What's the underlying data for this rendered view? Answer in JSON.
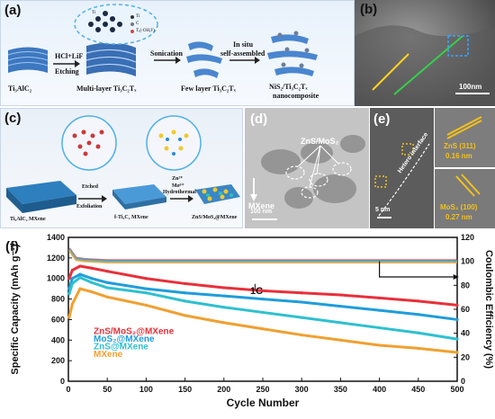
{
  "panel_a": {
    "label": "(a)",
    "steps": {
      "reagent1": "HCl+LiF",
      "step1": "Etching",
      "step2": "Sonication",
      "step3_line1": "In situ",
      "step3_line2": "self-assembled"
    },
    "materials": {
      "m1": "Ti₃AlC₂",
      "m2": "Multi-layer Ti₃C₂Tₓ",
      "m3": "Few layer Ti₃C₂Tₓ",
      "m4_line1": "NiS₂/Ti₃C₂Tₓ",
      "m4_line2": "nanocomposite"
    },
    "legend": [
      "Ti",
      "C",
      "Tₓ(-OH,F)"
    ]
  },
  "panel_b": {
    "label": "(b)",
    "scale": "100nm"
  },
  "panel_c": {
    "label": "(c)",
    "steps": {
      "s1_line1": "Etched",
      "s1_line2": "Exfoliation",
      "s2_line1": "Zn²⁺",
      "s2_line2": "Mo⁶⁺",
      "s2_line3": "Hydrothermal"
    },
    "materials": {
      "m1": "Ti₃AlC₂ MXene",
      "m2": "f-Ti₃C₂ MXene",
      "m3": "ZnS/MoS₂@MXene"
    }
  },
  "panel_d": {
    "label": "(d)",
    "annot1": "ZnS/MoS₂",
    "annot2": "MXene",
    "scale": "100 nm"
  },
  "panel_e": {
    "label": "(e)",
    "interface": "Hetero interface",
    "scale": "5 nm",
    "inset1_line1": "ZnS (311)",
    "inset1_line2": "0.16 nm",
    "inset2_line1": "MoS₂ (100)",
    "inset2_line2": "0.27 nm"
  },
  "panel_f": {
    "label": "(f)",
    "rate": "1C",
    "colors": {
      "ZnS_MoS2": "#e8303a",
      "MoS2": "#1f9ddb",
      "ZnS": "#2ec0cf",
      "MXene": "#f0a030"
    },
    "chart_data": {
      "type": "line",
      "xlabel": "Cycle Number",
      "ylabel": "Specific Capacity (mAh g⁻¹)",
      "y2label": "Coulombic Efficiency (%)",
      "xlim": [
        0,
        500
      ],
      "ylim": [
        0,
        1400
      ],
      "y2lim": [
        0,
        120
      ],
      "xticks": [
        0,
        50,
        100,
        150,
        200,
        250,
        300,
        350,
        400,
        450,
        500
      ],
      "yticks": [
        0,
        200,
        400,
        600,
        800,
        1000,
        1200,
        1400
      ],
      "y2ticks": [
        0,
        20,
        40,
        60,
        80,
        100,
        120
      ],
      "series": [
        {
          "name": "ZnS/MoS₂@MXene",
          "x": [
            1,
            5,
            15,
            30,
            50,
            100,
            150,
            200,
            250,
            300,
            350,
            400,
            450,
            500
          ],
          "y": [
            1000,
            1080,
            1120,
            1100,
            1070,
            1000,
            950,
            910,
            880,
            860,
            840,
            810,
            780,
            740
          ]
        },
        {
          "name": "MoS₂@MXene",
          "x": [
            1,
            5,
            15,
            30,
            50,
            100,
            150,
            200,
            250,
            300,
            350,
            400,
            450,
            500
          ],
          "y": [
            900,
            1000,
            1040,
            1000,
            960,
            900,
            860,
            830,
            800,
            770,
            730,
            690,
            650,
            600
          ]
        },
        {
          "name": "ZnS@MXene",
          "x": [
            1,
            5,
            15,
            30,
            50,
            100,
            150,
            200,
            250,
            300,
            350,
            400,
            450,
            500
          ],
          "y": [
            850,
            950,
            1010,
            960,
            910,
            860,
            780,
            720,
            670,
            620,
            570,
            520,
            470,
            410
          ]
        },
        {
          "name": "MXene",
          "x": [
            1,
            5,
            15,
            30,
            50,
            100,
            150,
            200,
            250,
            300,
            350,
            400,
            450,
            500
          ],
          "y": [
            620,
            750,
            900,
            870,
            820,
            740,
            640,
            570,
            510,
            450,
            400,
            350,
            320,
            280
          ]
        }
      ],
      "ce_series": {
        "x": [
          1,
          10,
          20,
          50,
          100,
          200,
          300,
          400,
          450,
          500
        ],
        "y": [
          110,
          102,
          101,
          100,
          100,
          100,
          100,
          100,
          100,
          100
        ]
      }
    }
  }
}
